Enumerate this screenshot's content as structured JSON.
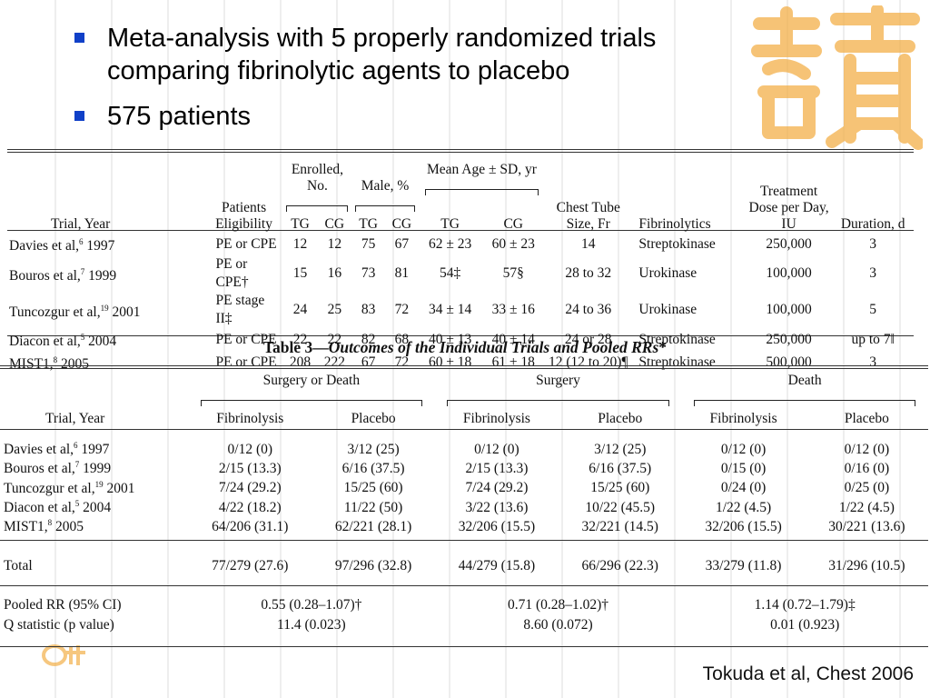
{
  "bullets": [
    "Meta-analysis with 5 properly randomized trials comparing fibrinolytic agents to placebo",
    "575 patients"
  ],
  "table1": {
    "headers": {
      "trial_year": "Trial, Year",
      "patients_eligibility": "Patients Eligibility",
      "enrolled": "Enrolled, No.",
      "male": "Male, %",
      "mean_age": "Mean Age ± SD, yr",
      "chest_tube": "Chest Tube Size, Fr",
      "fibrinolytics": "Fibrinolytics",
      "treatment_dose": "Treatment Dose per Day, IU",
      "duration": "Duration, d",
      "tg": "TG",
      "cg": "CG"
    },
    "rows": [
      {
        "trial": "Davies et al,",
        "ref": "6",
        "year": " 1997",
        "elig": "PE or CPE",
        "en_tg": "12",
        "en_cg": "12",
        "m_tg": "75",
        "m_cg": "67",
        "age_tg": "62 ± 23",
        "age_cg": "60 ± 23",
        "tube": "14",
        "fib": "Streptokinase",
        "dose": "250,000",
        "dur": "3"
      },
      {
        "trial": "Bouros et al,",
        "ref": "7",
        "year": " 1999",
        "elig": "PE or CPE†",
        "en_tg": "15",
        "en_cg": "16",
        "m_tg": "73",
        "m_cg": "81",
        "age_tg": "54‡",
        "age_cg": "57§",
        "tube": "28 to 32",
        "fib": "Urokinase",
        "dose": "100,000",
        "dur": "3"
      },
      {
        "trial": "Tuncozgur et al,",
        "ref": "19",
        "year": " 2001",
        "elig": "PE stage II‡",
        "en_tg": "24",
        "en_cg": "25",
        "m_tg": "83",
        "m_cg": "72",
        "age_tg": "34 ± 14",
        "age_cg": "33 ± 16",
        "tube": "24 to 36",
        "fib": "Urokinase",
        "dose": "100,000",
        "dur": "5"
      },
      {
        "trial": "Diacon et al,",
        "ref": "5",
        "year": " 2004",
        "elig": "PE or CPE",
        "en_tg": "22",
        "en_cg": "22",
        "m_tg": "82",
        "m_cg": "68",
        "age_tg": "40 ± 13",
        "age_cg": "40 ± 14",
        "tube": "24 or 28",
        "fib": "Streptokinase",
        "dose": "250,000",
        "dur": "up to 7‖"
      },
      {
        "trial": "MIST1,",
        "ref": "8",
        "year": " 2005",
        "elig": "PE or CPE",
        "en_tg": "208",
        "en_cg": "222",
        "m_tg": "67",
        "m_cg": "72",
        "age_tg": "60 ± 18",
        "age_cg": "61 ± 18",
        "tube": "12 (12 to 20)¶",
        "fib": "Streptokinase",
        "dose": "500,000",
        "dur": "3"
      }
    ]
  },
  "caption": {
    "prefix": "Table 3—",
    "italic": "Outcomes of the Individual Trials and Pooled RRs",
    "suffix": "*"
  },
  "table2": {
    "groups": [
      "Surgery or Death",
      "Surgery",
      "Death"
    ],
    "trial_year": "Trial, Year",
    "fibrinolysis": "Fibrinolysis",
    "placebo": "Placebo",
    "rows": [
      {
        "trial": "Davies et al,",
        "ref": "6",
        "year": " 1997",
        "v": [
          "0/12 (0)",
          "3/12 (25)",
          "0/12 (0)",
          "3/12 (25)",
          "0/12 (0)",
          "0/12 (0)"
        ]
      },
      {
        "trial": "Bouros et al,",
        "ref": "7",
        "year": " 1999",
        "v": [
          "2/15 (13.3)",
          "6/16 (37.5)",
          "2/15 (13.3)",
          "6/16 (37.5)",
          "0/15 (0)",
          "0/16 (0)"
        ]
      },
      {
        "trial": "Tuncozgur et al,",
        "ref": "19",
        "year": " 2001",
        "v": [
          "7/24 (29.2)",
          "15/25 (60)",
          "7/24 (29.2)",
          "15/25 (60)",
          "0/24 (0)",
          "0/25 (0)"
        ]
      },
      {
        "trial": "Diacon et al,",
        "ref": "5",
        "year": " 2004",
        "v": [
          "4/22 (18.2)",
          "11/22 (50)",
          "3/22 (13.6)",
          "10/22 (45.5)",
          "1/22 (4.5)",
          "1/22 (4.5)"
        ]
      },
      {
        "trial": "MIST1,",
        "ref": "8",
        "year": " 2005",
        "v": [
          "64/206 (31.1)",
          "62/221 (28.1)",
          "32/206 (15.5)",
          "32/221 (14.5)",
          "32/206 (15.5)",
          "30/221 (13.6)"
        ]
      }
    ],
    "total": {
      "label": "Total",
      "v": [
        "77/279 (27.6)",
        "97/296 (32.8)",
        "44/279 (15.8)",
        "66/296 (22.3)",
        "33/279 (11.8)",
        "31/296 (10.5)"
      ]
    },
    "pooled": {
      "label": "Pooled RR (95% CI)",
      "v": [
        "0.55 (0.28–1.07)†",
        "0.71 (0.28–1.02)†",
        "1.14 (0.72–1.79)‡"
      ]
    },
    "q": {
      "label": "Q statistic (p value)",
      "v": [
        "11.4 (0.023)",
        "8.60 (0.072)",
        "0.01 (0.923)"
      ]
    }
  },
  "citation": "Tokuda et al, Chest 2006",
  "colors": {
    "bullet": "#1040c8",
    "logo": "#f0a830"
  }
}
